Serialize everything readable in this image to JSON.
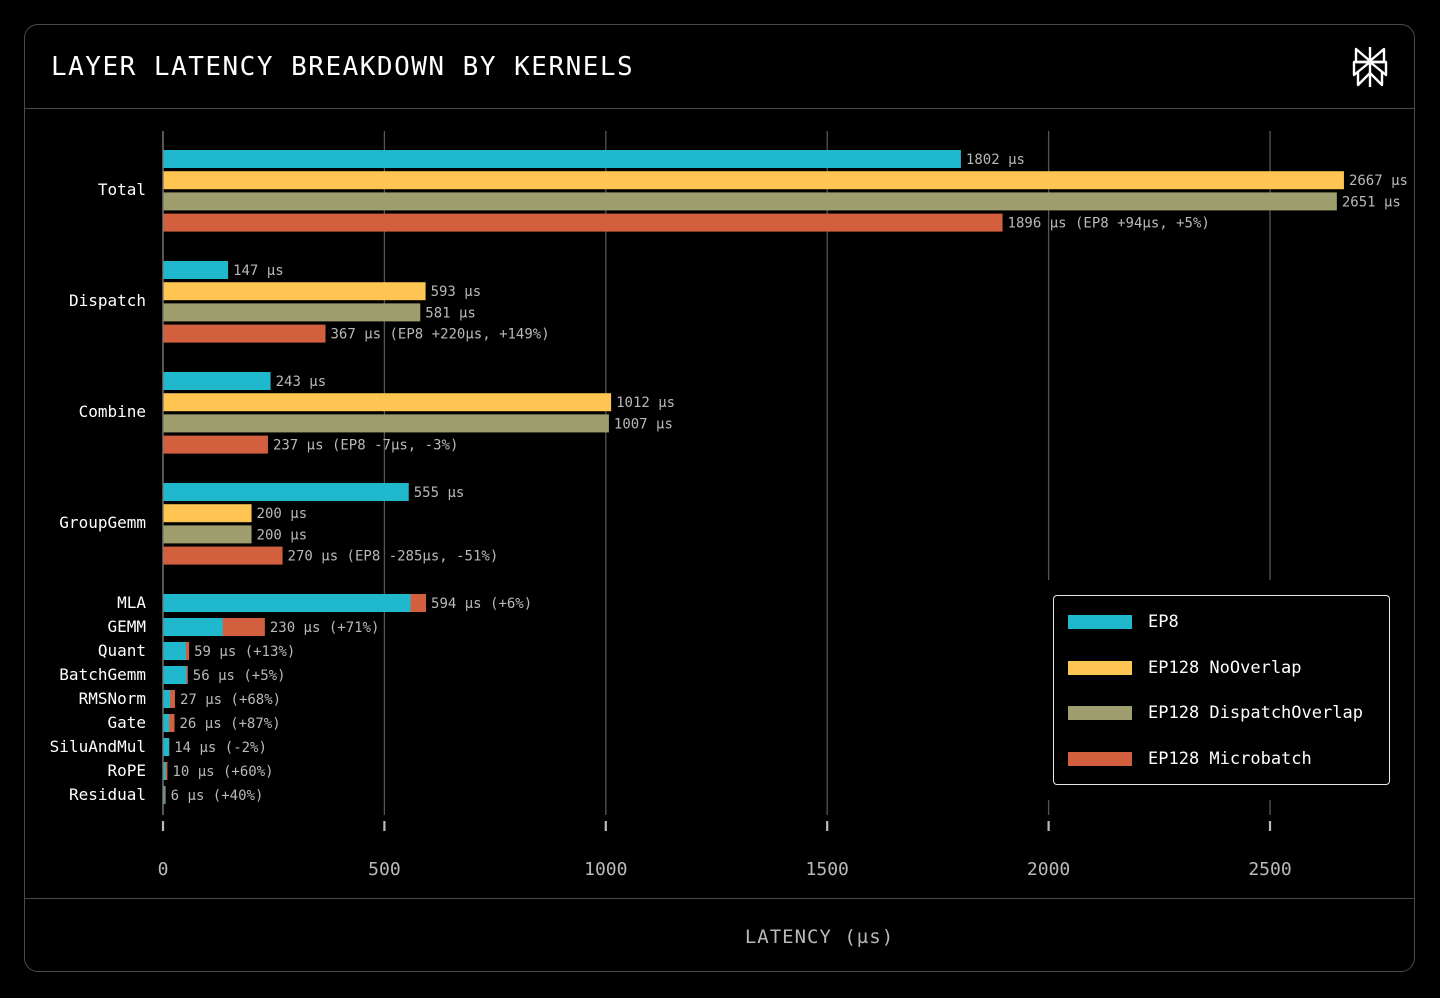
{
  "title": "LAYER LATENCY BREAKDOWN BY KERNELS",
  "logo_icon": "perplexity-logo-icon",
  "chart_data": {
    "type": "bar",
    "orientation": "horizontal",
    "title": "LAYER LATENCY BREAKDOWN BY KERNELS",
    "xlabel": "LATENCY (µs)",
    "ylabel": "",
    "xlim": [
      0,
      2700
    ],
    "x_ticks": [
      "0",
      "500",
      "1000",
      "1500",
      "2000",
      "2500"
    ],
    "grid": "vertical",
    "legend_position": "bottom-right",
    "colors": {
      "EP8": "#1fb8cd",
      "EP128 NoOverlap": "#ffc553",
      "EP128 DispatchOverlap": "#9e9e6e",
      "EP128 Microbatch": "#d2603f"
    },
    "legend": [
      "EP8",
      "EP128 NoOverlap",
      "EP128 DispatchOverlap",
      "EP128 Microbatch"
    ],
    "grouped": {
      "categories": [
        "Total",
        "Dispatch",
        "Combine",
        "GroupGemm"
      ],
      "series": [
        {
          "name": "EP8",
          "values": [
            1802,
            147,
            243,
            555
          ],
          "labels": [
            "1802 µs",
            "147 µs",
            "243 µs",
            "555 µs"
          ]
        },
        {
          "name": "EP128 NoOverlap",
          "values": [
            2667,
            593,
            1012,
            200
          ],
          "labels": [
            "2667 µs",
            "593 µs",
            "1012 µs",
            "200 µs"
          ]
        },
        {
          "name": "EP128 DispatchOverlap",
          "values": [
            2651,
            581,
            1007,
            200
          ],
          "labels": [
            "2651 µs",
            "581 µs",
            "1007 µs",
            "200 µs"
          ]
        },
        {
          "name": "EP128 Microbatch",
          "values": [
            1896,
            367,
            237,
            270
          ],
          "labels": [
            "1896 µs (EP8 +94µs, +5%)",
            "367 µs (EP8 +220µs, +149%)",
            "237 µs (EP8 -7µs, -3%)",
            "270 µs (EP8 -285µs, -51%)"
          ]
        }
      ]
    },
    "overlay": {
      "categories": [
        "MLA",
        "GEMM",
        "Quant",
        "BatchGemm",
        "RMSNorm",
        "Gate",
        "SiluAndMul",
        "RoPE",
        "Residual"
      ],
      "series": [
        {
          "name": "EP8",
          "values": [
            559,
            135,
            52,
            53,
            16,
            14,
            14,
            6,
            4
          ]
        },
        {
          "name": "EP128 Microbatch",
          "values": [
            594,
            230,
            59,
            56,
            27,
            26,
            14,
            10,
            6
          ]
        }
      ],
      "labels": [
        "594 µs (+6%)",
        "230 µs (+71%)",
        "59 µs (+13%)",
        "56 µs (+5%)",
        "27 µs (+68%)",
        "26 µs (+87%)",
        "14 µs (-2%)",
        "10 µs (+60%)",
        "6 µs (+40%)"
      ]
    }
  }
}
